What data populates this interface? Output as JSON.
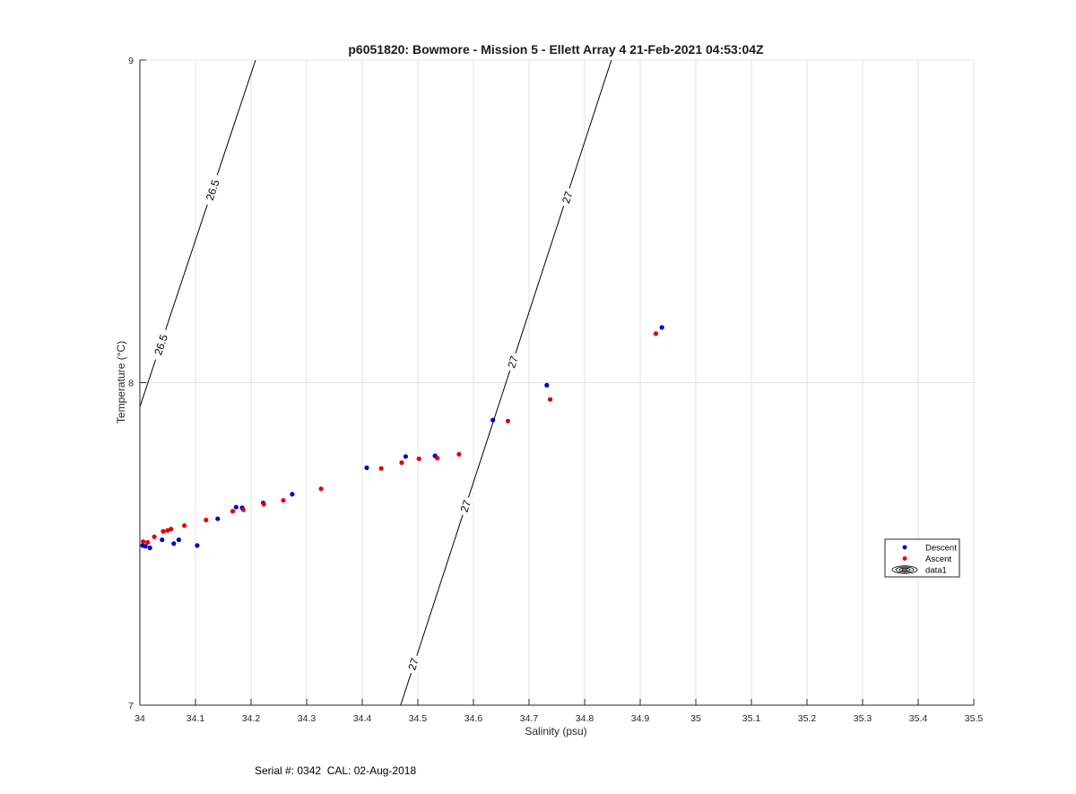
{
  "chart_data": {
    "type": "scatter",
    "title": "p6051820: Bowmore - Mission 5 - Ellett Array 4 21-Feb-2021 04:53:04Z",
    "xlabel": "Salinity (psu)",
    "ylabel": "Temperature (°C)",
    "xlim": [
      34,
      35.5
    ],
    "ylim": [
      7,
      9
    ],
    "x_ticks": [
      34,
      34.1,
      34.2,
      34.3,
      34.4,
      34.5,
      34.6,
      34.7,
      34.8,
      34.9,
      35,
      35.1,
      35.2,
      35.3,
      35.4,
      35.5
    ],
    "x_tick_labels": [
      "34",
      "34.1",
      "34.2",
      "34.3",
      "34.4",
      "34.5",
      "34.6",
      "34.7",
      "34.8",
      "34.9",
      "35",
      "35.1",
      "35.2",
      "35.3",
      "35.4",
      "35.5"
    ],
    "y_ticks": [
      7,
      8,
      9
    ],
    "y_tick_labels": [
      "7",
      "8",
      "9"
    ],
    "grid": true,
    "legend_position": "right",
    "series": [
      {
        "name": "Descent",
        "color": "#0000c8",
        "points": [
          [
            34.005,
            7.495
          ],
          [
            34.01,
            7.493
          ],
          [
            34.018,
            7.488
          ],
          [
            34.04,
            7.513
          ],
          [
            34.061,
            7.501
          ],
          [
            34.07,
            7.513
          ],
          [
            34.103,
            7.495
          ],
          [
            34.14,
            7.578
          ],
          [
            34.173,
            7.614
          ],
          [
            34.184,
            7.612
          ],
          [
            34.222,
            7.627
          ],
          [
            34.274,
            7.654
          ],
          [
            34.408,
            7.736
          ],
          [
            34.478,
            7.771
          ],
          [
            34.531,
            7.773
          ],
          [
            34.635,
            7.884
          ],
          [
            34.732,
            7.992
          ],
          [
            34.939,
            8.171
          ]
        ]
      },
      {
        "name": "Ascent",
        "color": "#e00000",
        "points": [
          [
            34.006,
            7.507
          ],
          [
            34.014,
            7.505
          ],
          [
            34.026,
            7.522
          ],
          [
            34.042,
            7.539
          ],
          [
            34.05,
            7.542
          ],
          [
            34.056,
            7.546
          ],
          [
            34.08,
            7.557
          ],
          [
            34.119,
            7.574
          ],
          [
            34.167,
            7.601
          ],
          [
            34.186,
            7.606
          ],
          [
            34.223,
            7.623
          ],
          [
            34.258,
            7.635
          ],
          [
            34.326,
            7.671
          ],
          [
            34.434,
            7.734
          ],
          [
            34.471,
            7.752
          ],
          [
            34.502,
            7.764
          ],
          [
            34.535,
            7.766
          ],
          [
            34.574,
            7.778
          ],
          [
            34.662,
            7.881
          ],
          [
            34.738,
            7.948
          ],
          [
            34.928,
            8.152
          ]
        ]
      },
      {
        "name": "data1",
        "type": "contour",
        "color": "#000000",
        "lines": [
          {
            "level": "26.5",
            "points": [
              [
                34,
                7.925
              ],
              [
                34.208,
                9
              ]
            ]
          },
          {
            "level": "27",
            "points": [
              [
                34.469,
                7
              ],
              [
                34.848,
                9
              ]
            ]
          }
        ],
        "labels": [
          {
            "text": "26.5",
            "x": 34.131,
            "y": 8.597
          },
          {
            "text": "26.5",
            "x": 34.038,
            "y": 8.117
          },
          {
            "text": "27",
            "x": 34.769,
            "y": 8.574
          },
          {
            "text": "27",
            "x": 34.671,
            "y": 8.064
          },
          {
            "text": "27",
            "x": 34.586,
            "y": 7.617
          },
          {
            "text": "27",
            "x": 34.492,
            "y": 7.127
          }
        ]
      }
    ]
  },
  "footer": {
    "text": "Serial #: 0342  CAL: 02-Aug-2018"
  }
}
